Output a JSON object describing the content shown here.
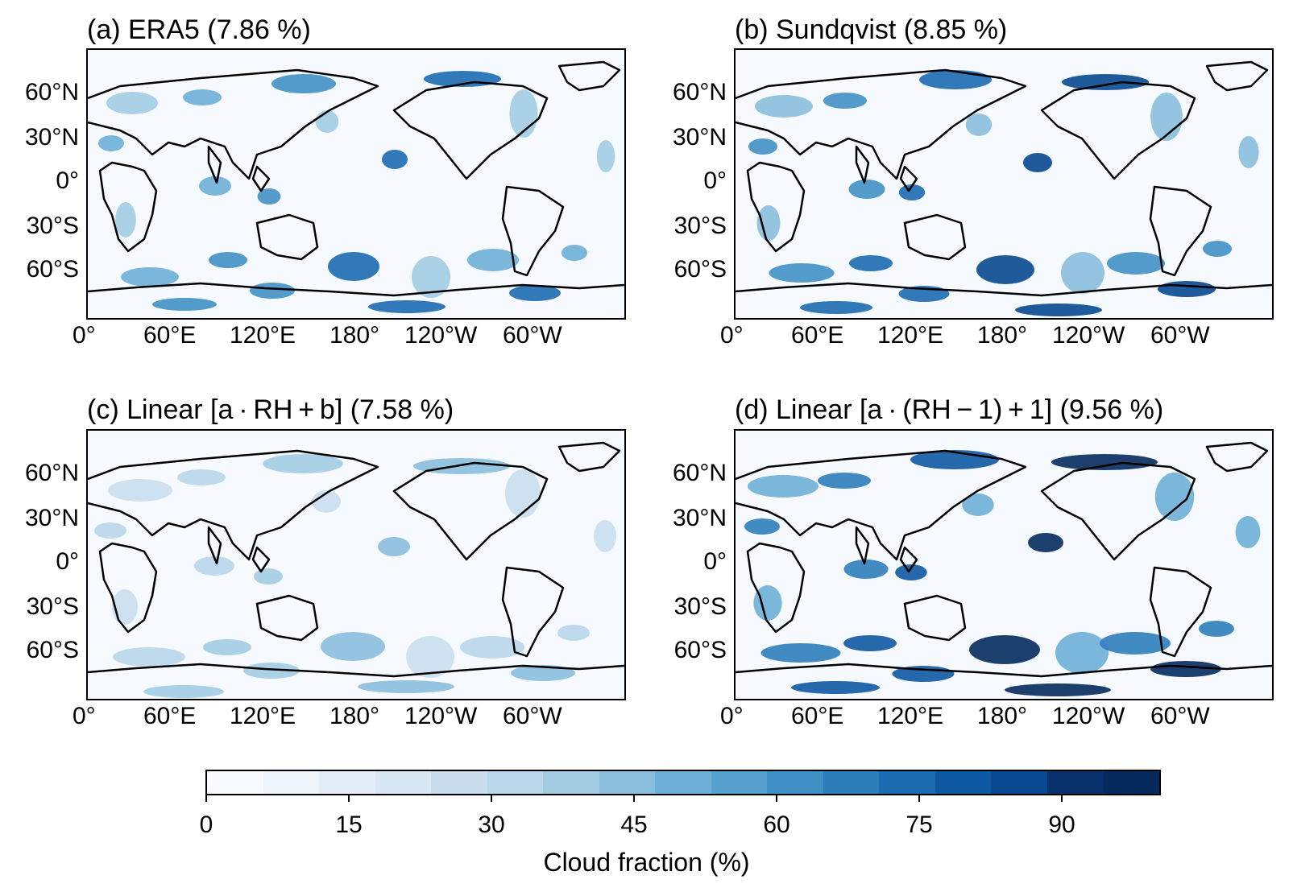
{
  "panels": [
    {
      "title": "(a) ERA5 (7.86 %)",
      "intensity": 0.75
    },
    {
      "title": "(b) Sundqvist (8.85 %)",
      "intensity": 0.9
    },
    {
      "title": "(c) Linear [a · RH + b] (7.58 %)",
      "intensity": 0.45
    },
    {
      "title": "(d) Linear [a · (RH − 1) + 1] (9.56 %)",
      "intensity": 1.0
    }
  ],
  "lat_labels": [
    "60°N",
    "30°N",
    "0°",
    "30°S",
    "60°S"
  ],
  "lon_labels": [
    "0°",
    "60°E",
    "120°E",
    "180°",
    "120°W",
    "60°W"
  ],
  "colorbar": {
    "label": "Cloud fraction (%)",
    "tick_labels": [
      "0",
      "15",
      "30",
      "45",
      "60",
      "75",
      "90"
    ],
    "colors": [
      "#f7fbff",
      "#eef5fc",
      "#e3eef9",
      "#d9e8f5",
      "#cadef0",
      "#bad6eb",
      "#a3cce3",
      "#89bedc",
      "#6dafd7",
      "#56a0ce",
      "#4090c5",
      "#2d7dbb",
      "#1c6ab0",
      "#0e58a2",
      "#084990",
      "#08306b",
      "#062a5e"
    ]
  }
}
